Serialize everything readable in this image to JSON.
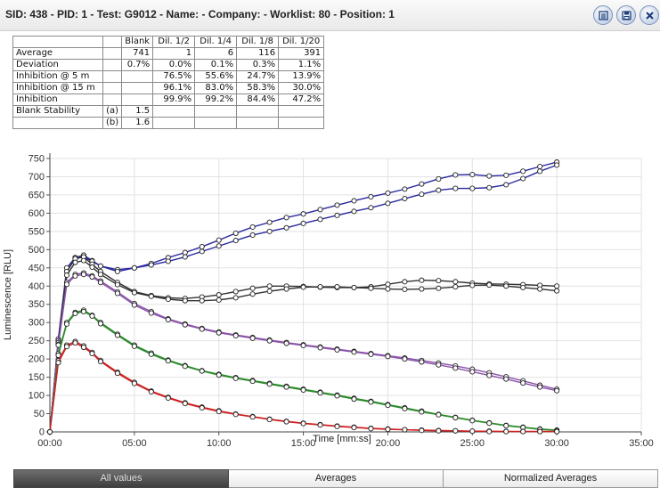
{
  "header": {
    "title": "SID: 438 -  PID: 1 -  Test: G9012 -  Name:  -  Company:  -  Worklist: 80 -  Position: 1",
    "buttons": [
      {
        "icon": "list-icon"
      },
      {
        "icon": "save-icon"
      },
      {
        "icon": "close-icon"
      }
    ]
  },
  "table": {
    "columns": [
      "",
      "",
      "Blank",
      "Dil. 1/2",
      "Dil. 1/4",
      "Dil. 1/8",
      "Dil. 1/20"
    ],
    "rows": [
      [
        "Average",
        "",
        "741",
        "1",
        "6",
        "116",
        "391"
      ],
      [
        "Deviation",
        "",
        "0.7%",
        "0.0%",
        "0.1%",
        "0.3%",
        "1.1%"
      ],
      [
        "Inhibition @ 5 m",
        "",
        "",
        "76.5%",
        "55.6%",
        "24.7%",
        "13.9%"
      ],
      [
        "Inhibition @ 15 m",
        "",
        "",
        "96.1%",
        "83.0%",
        "58.3%",
        "30.0%"
      ],
      [
        "Inhibition",
        "",
        "",
        "99.9%",
        "99.2%",
        "84.4%",
        "47.2%"
      ],
      [
        "Blank Stability",
        "(a)",
        "1.5",
        "",
        "",
        "",
        ""
      ],
      [
        "",
        "(b)",
        "1.6",
        "",
        "",
        "",
        ""
      ]
    ]
  },
  "chart_data": {
    "type": "line",
    "title": "",
    "xlabel": "Time [mm:ss]",
    "ylabel": "Luminescence [RLU]",
    "xlim": [
      0,
      35
    ],
    "ylim": [
      0,
      750
    ],
    "xticks": [
      "00:00",
      "05:00",
      "10:00",
      "15:00",
      "20:00",
      "25:00",
      "30:00",
      "35:00"
    ],
    "yticks": [
      0,
      50,
      100,
      150,
      200,
      250,
      300,
      350,
      400,
      450,
      500,
      550,
      600,
      650,
      700,
      750
    ],
    "grid": true,
    "legend": "none",
    "x_minutes": [
      0,
      0.5,
      1,
      1.5,
      2,
      2.5,
      3,
      4,
      5,
      6,
      7,
      8,
      9,
      10,
      11,
      12,
      13,
      14,
      15,
      16,
      17,
      18,
      19,
      20,
      21,
      22,
      23,
      24,
      25,
      26,
      27,
      28,
      29,
      30
    ],
    "series": [
      {
        "color": "#2a2aa0",
        "values": [
          0,
          250,
          440,
          478,
          485,
          470,
          455,
          445,
          450,
          462,
          478,
          492,
          508,
          526,
          545,
          562,
          575,
          588,
          598,
          610,
          622,
          634,
          645,
          655,
          666,
          680,
          694,
          705,
          706,
          702,
          704,
          715,
          728,
          740
        ]
      },
      {
        "color": "#2a2aa0",
        "values": [
          0,
          255,
          450,
          478,
          480,
          468,
          455,
          440,
          450,
          458,
          468,
          480,
          495,
          510,
          525,
          540,
          550,
          560,
          572,
          583,
          594,
          605,
          615,
          627,
          640,
          652,
          663,
          668,
          668,
          670,
          678,
          695,
          715,
          732
        ]
      },
      {
        "color": "#333333",
        "values": [
          0,
          250,
          440,
          475,
          480,
          460,
          440,
          410,
          385,
          374,
          368,
          366,
          370,
          376,
          385,
          394,
          400,
          400,
          399,
          397,
          396,
          396,
          398,
          405,
          412,
          416,
          415,
          412,
          408,
          406,
          405,
          404,
          402,
          400
        ]
      },
      {
        "color": "#333333",
        "values": [
          0,
          245,
          430,
          465,
          470,
          452,
          432,
          404,
          382,
          372,
          364,
          360,
          360,
          362,
          368,
          378,
          386,
          392,
          397,
          398,
          398,
          396,
          394,
          392,
          391,
          392,
          394,
          398,
          402,
          403,
          400,
          396,
          392,
          387
        ]
      },
      {
        "color": "#8a55a8",
        "values": [
          0,
          240,
          410,
          432,
          436,
          428,
          414,
          384,
          352,
          330,
          310,
          296,
          284,
          274,
          266,
          259,
          252,
          245,
          239,
          233,
          227,
          221,
          215,
          209,
          203,
          196,
          189,
          181,
          172,
          162,
          151,
          140,
          128,
          117
        ]
      },
      {
        "color": "#8a55a8",
        "values": [
          0,
          238,
          405,
          428,
          432,
          425,
          410,
          380,
          348,
          326,
          308,
          294,
          282,
          272,
          264,
          257,
          250,
          243,
          237,
          231,
          225,
          219,
          213,
          207,
          200,
          192,
          184,
          175,
          165,
          155,
          145,
          134,
          123,
          113
        ]
      },
      {
        "color": "#2e8b2e",
        "values": [
          0,
          215,
          300,
          328,
          334,
          320,
          300,
          268,
          238,
          216,
          197,
          182,
          168,
          158,
          149,
          141,
          133,
          125,
          117,
          109,
          101,
          92,
          84,
          75,
          66,
          57,
          48,
          40,
          32,
          25,
          18,
          13,
          8,
          5
        ]
      },
      {
        "color": "#2e8b2e",
        "values": [
          0,
          210,
          296,
          325,
          330,
          318,
          297,
          265,
          235,
          213,
          195,
          180,
          167,
          156,
          147,
          139,
          131,
          123,
          115,
          107,
          99,
          90,
          82,
          73,
          64,
          55,
          47,
          39,
          31,
          24,
          17,
          12,
          7,
          4
        ]
      },
      {
        "color": "#cc2222",
        "values": [
          0,
          195,
          238,
          248,
          236,
          218,
          196,
          164,
          136,
          112,
          95,
          80,
          68,
          58,
          49,
          42,
          35,
          29,
          24,
          20,
          16,
          13,
          10,
          8,
          6,
          5,
          4,
          3,
          2,
          2,
          1,
          1,
          1,
          1
        ]
      },
      {
        "color": "#cc2222",
        "values": [
          0,
          190,
          234,
          244,
          232,
          215,
          193,
          161,
          133,
          110,
          93,
          78,
          66,
          56,
          48,
          41,
          34,
          28,
          23,
          19,
          15,
          12,
          9,
          7,
          6,
          4,
          3,
          3,
          2,
          1,
          1,
          1,
          1,
          1
        ]
      }
    ]
  },
  "tabs": [
    {
      "label": "All values",
      "active": true
    },
    {
      "label": "Averages",
      "active": false
    },
    {
      "label": "Normalized Averages",
      "active": false
    }
  ]
}
